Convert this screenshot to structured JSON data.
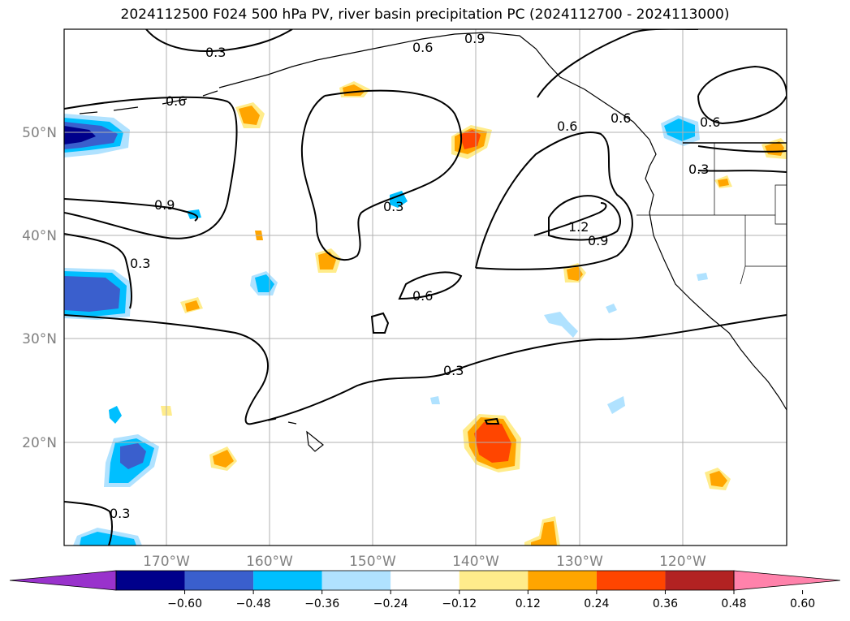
{
  "title": "2024112500 F024 500 hPa PV, river basin precipitation PC (2024112700 - 2024113000)",
  "lat_labels": [
    "50°N",
    "40°N",
    "30°N",
    "20°N"
  ],
  "lon_labels": [
    "170°W",
    "160°W",
    "150°W",
    "140°W",
    "130°W",
    "120°W"
  ],
  "contour_labels": [
    "0.3",
    "0.9",
    "0.6",
    "0.6",
    "0.6",
    "0.6",
    "0.9",
    "0.3",
    "0.3",
    "1.2",
    "0.9",
    "0.6",
    "0.3",
    "0.3",
    "0.6",
    "0.3"
  ],
  "colorbar": {
    "ticks": [
      "−0.60",
      "−0.48",
      "−0.36",
      "−0.24",
      "−0.12",
      "0.12",
      "0.24",
      "0.36",
      "0.48",
      "0.60"
    ],
    "colors": [
      "#9932cc",
      "#00008b",
      "#3a5fcd",
      "#00bfff",
      "#b0e2ff",
      "#ffffff",
      "#ffec8b",
      "#ffa500",
      "#ff4500",
      "#b22222",
      "#ff82ab"
    ]
  }
}
